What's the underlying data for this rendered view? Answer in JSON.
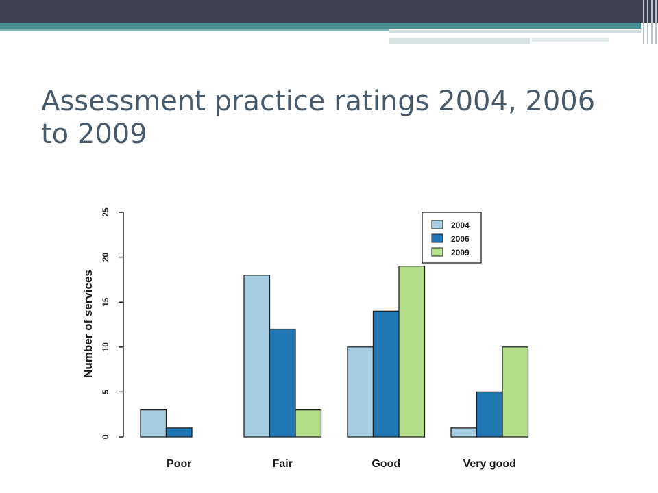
{
  "slide": {
    "title": "Assessment practice ratings 2004, 2006 to 2009"
  },
  "colors": {
    "top_bar": "#414052",
    "accent_teal": "#4a8f94",
    "title_text": "#48596a"
  },
  "chart_data": {
    "type": "bar",
    "title": "",
    "xlabel": "",
    "ylabel": "Number of services",
    "categories": [
      "Poor",
      "Fair",
      "Good",
      "Very good"
    ],
    "series": [
      {
        "name": "2004",
        "color": "#a6cde2",
        "values": [
          3,
          18,
          10,
          1
        ]
      },
      {
        "name": "2006",
        "color": "#2077b4",
        "values": [
          1,
          12,
          14,
          5
        ]
      },
      {
        "name": "2009",
        "color": "#b2de89",
        "values": [
          0,
          3,
          19,
          10
        ]
      }
    ],
    "ylim": [
      0,
      25
    ],
    "yticks": [
      "0",
      "5",
      "10",
      "15",
      "20",
      "25"
    ],
    "grid": false,
    "legend_position": "top-right"
  }
}
